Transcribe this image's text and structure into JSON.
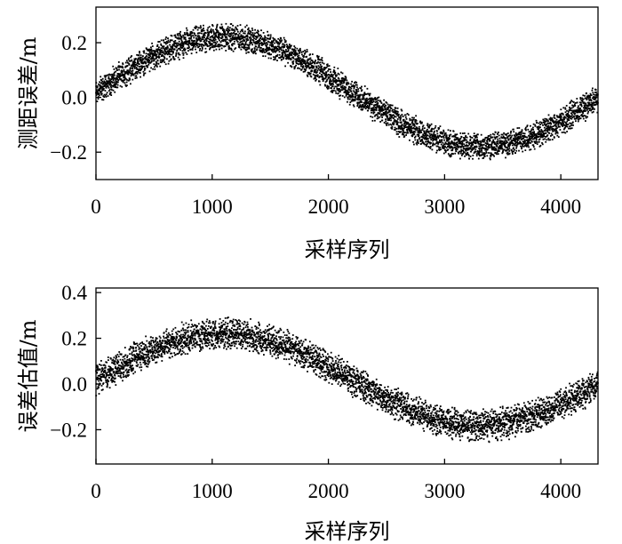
{
  "chart_data": [
    {
      "type": "scatter",
      "xlabel": "采样序列",
      "ylabel": "测距误差/m",
      "xlim": [
        0,
        4320
      ],
      "ylim": [
        -0.3,
        0.33
      ],
      "xticks": [
        0,
        1000,
        2000,
        3000,
        4000
      ],
      "xtick_labels": [
        "0",
        "1000",
        "2000",
        "3000",
        "4000"
      ],
      "yticks": [
        -0.2,
        0.0,
        0.2
      ],
      "ytick_labels": [
        "−0.2",
        "0.0",
        "0.2"
      ],
      "series": [
        {
          "trend": {
            "amplitude": 0.2,
            "period": 4400,
            "phase_zero_at": 0,
            "offset": 0.02
          },
          "sample_count": 4320,
          "noise_halfwidth": 0.04,
          "x": [
            0,
            500,
            1000,
            1100,
            1500,
            2000,
            2500,
            3000,
            3200,
            3500,
            4000,
            4300
          ],
          "y": [
            0.02,
            0.14,
            0.21,
            0.22,
            0.17,
            0.05,
            -0.1,
            -0.17,
            -0.18,
            -0.16,
            -0.08,
            0.0
          ]
        }
      ],
      "grid": false,
      "legend": "none"
    },
    {
      "type": "scatter",
      "xlabel": "采样序列",
      "ylabel": "误差估值/m",
      "xlim": [
        0,
        4320
      ],
      "ylim": [
        -0.35,
        0.42
      ],
      "xticks": [
        0,
        1000,
        2000,
        3000,
        4000
      ],
      "xtick_labels": [
        "0",
        "1000",
        "2000",
        "3000",
        "4000"
      ],
      "yticks": [
        -0.2,
        0.0,
        0.2,
        0.4
      ],
      "ytick_labels": [
        "−0.2",
        "0.0",
        "0.2",
        "0.4"
      ],
      "series": [
        {
          "trend": {
            "amplitude": 0.2,
            "period": 4400,
            "phase_zero_at": 0,
            "offset": 0.02
          },
          "sample_count": 4320,
          "noise_halfwidth": 0.055,
          "x": [
            0,
            500,
            1000,
            1100,
            1500,
            2000,
            2500,
            3000,
            3200,
            3500,
            4000,
            4300
          ],
          "y": [
            0.02,
            0.14,
            0.21,
            0.22,
            0.17,
            0.05,
            -0.1,
            -0.17,
            -0.18,
            -0.16,
            -0.08,
            0.0
          ]
        }
      ],
      "grid": false,
      "legend": "none"
    }
  ]
}
